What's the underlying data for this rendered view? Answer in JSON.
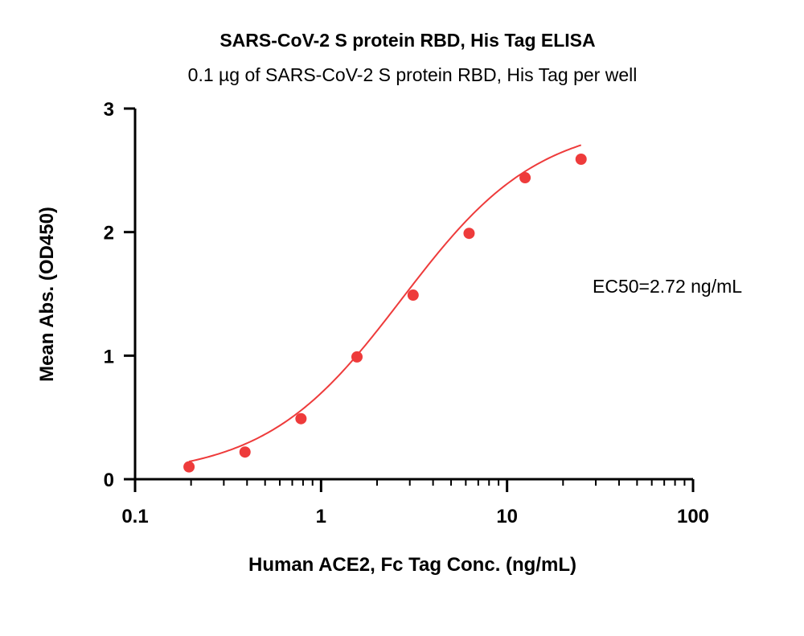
{
  "chart_data": {
    "type": "scatter",
    "title": "SARS-CoV-2 S protein RBD, His Tag ELISA",
    "subtitle": "0.1 µg of SARS-CoV-2 S protein RBD, His Tag per well",
    "xlabel": "Human ACE2, Fc Tag Conc. (ng/mL)",
    "ylabel": "Mean Abs. (OD450)",
    "x_scale": "log",
    "xlim": [
      0.1,
      100
    ],
    "ylim": [
      0,
      3
    ],
    "x_ticks": [
      0.1,
      1,
      10,
      100
    ],
    "x_tick_labels": [
      "0.1",
      "1",
      "10",
      "100"
    ],
    "y_ticks": [
      0,
      1,
      2,
      3
    ],
    "y_tick_labels": [
      "0",
      "1",
      "2",
      "3"
    ],
    "grid": false,
    "legend": "none",
    "series": [
      {
        "color": "#ee3b3b",
        "x": [
          0.195,
          0.39,
          0.78,
          1.56,
          3.125,
          6.25,
          12.5,
          25
        ],
        "y": [
          0.1,
          0.22,
          0.49,
          0.99,
          1.49,
          1.99,
          2.44,
          2.59
        ]
      }
    ],
    "fit_curve": {
      "model": "4PL",
      "bottom": 0.02,
      "top": 2.9,
      "ec50": 2.72,
      "hill": 1.18,
      "x_range": [
        0.195,
        25
      ],
      "color": "#ee3b3b"
    },
    "annotations": [
      {
        "text": "EC50=2.72 ng/mL"
      }
    ]
  }
}
